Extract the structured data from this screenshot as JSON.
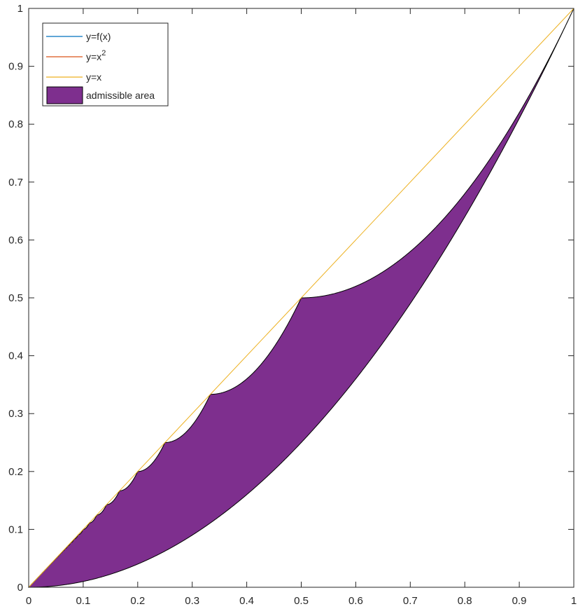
{
  "chart_data": {
    "type": "area",
    "xlim": [
      0,
      1
    ],
    "ylim": [
      0,
      1
    ],
    "x_ticks": [
      "0",
      "0.1",
      "0.2",
      "0.3",
      "0.4",
      "0.5",
      "0.6",
      "0.7",
      "0.8",
      "0.9",
      "1"
    ],
    "y_ticks": [
      "0",
      "0.1",
      "0.2",
      "0.3",
      "0.4",
      "0.5",
      "0.6",
      "0.7",
      "0.8",
      "0.9",
      "1"
    ],
    "grid": false,
    "legend_position": "top-left",
    "legend": [
      {
        "label": "y=f(x)",
        "color": "#0072BD",
        "kind": "line"
      },
      {
        "label": "y=x",
        "superscript": "2",
        "color": "#D95319",
        "kind": "line"
      },
      {
        "label": "y=x",
        "color": "#EDB120",
        "kind": "line"
      },
      {
        "label": "admissible area",
        "color": "#7E2F8E",
        "kind": "patch"
      }
    ],
    "series": [
      {
        "name": "y=f(x)",
        "description_function": "piecewise: on [1/(n+1), 1/n], f(x) = 1/(n+1) + n(n+1)(x - 1/(n+1))^2 ... ; passes through (1/n, 1/n)",
        "points": [
          [
            0,
            0
          ],
          [
            0.1,
            0.1
          ],
          [
            0.111,
            0.111
          ],
          [
            0.125,
            0.125
          ],
          [
            0.143,
            0.143
          ],
          [
            0.167,
            0.167
          ],
          [
            0.2,
            0.2
          ],
          [
            0.25,
            0.25
          ],
          [
            0.333,
            0.333
          ],
          [
            0.5,
            0.5
          ],
          [
            1,
            1
          ]
        ]
      },
      {
        "name": "y=x^2",
        "function": "x^2"
      },
      {
        "name": "y=x",
        "function": "x"
      }
    ]
  }
}
